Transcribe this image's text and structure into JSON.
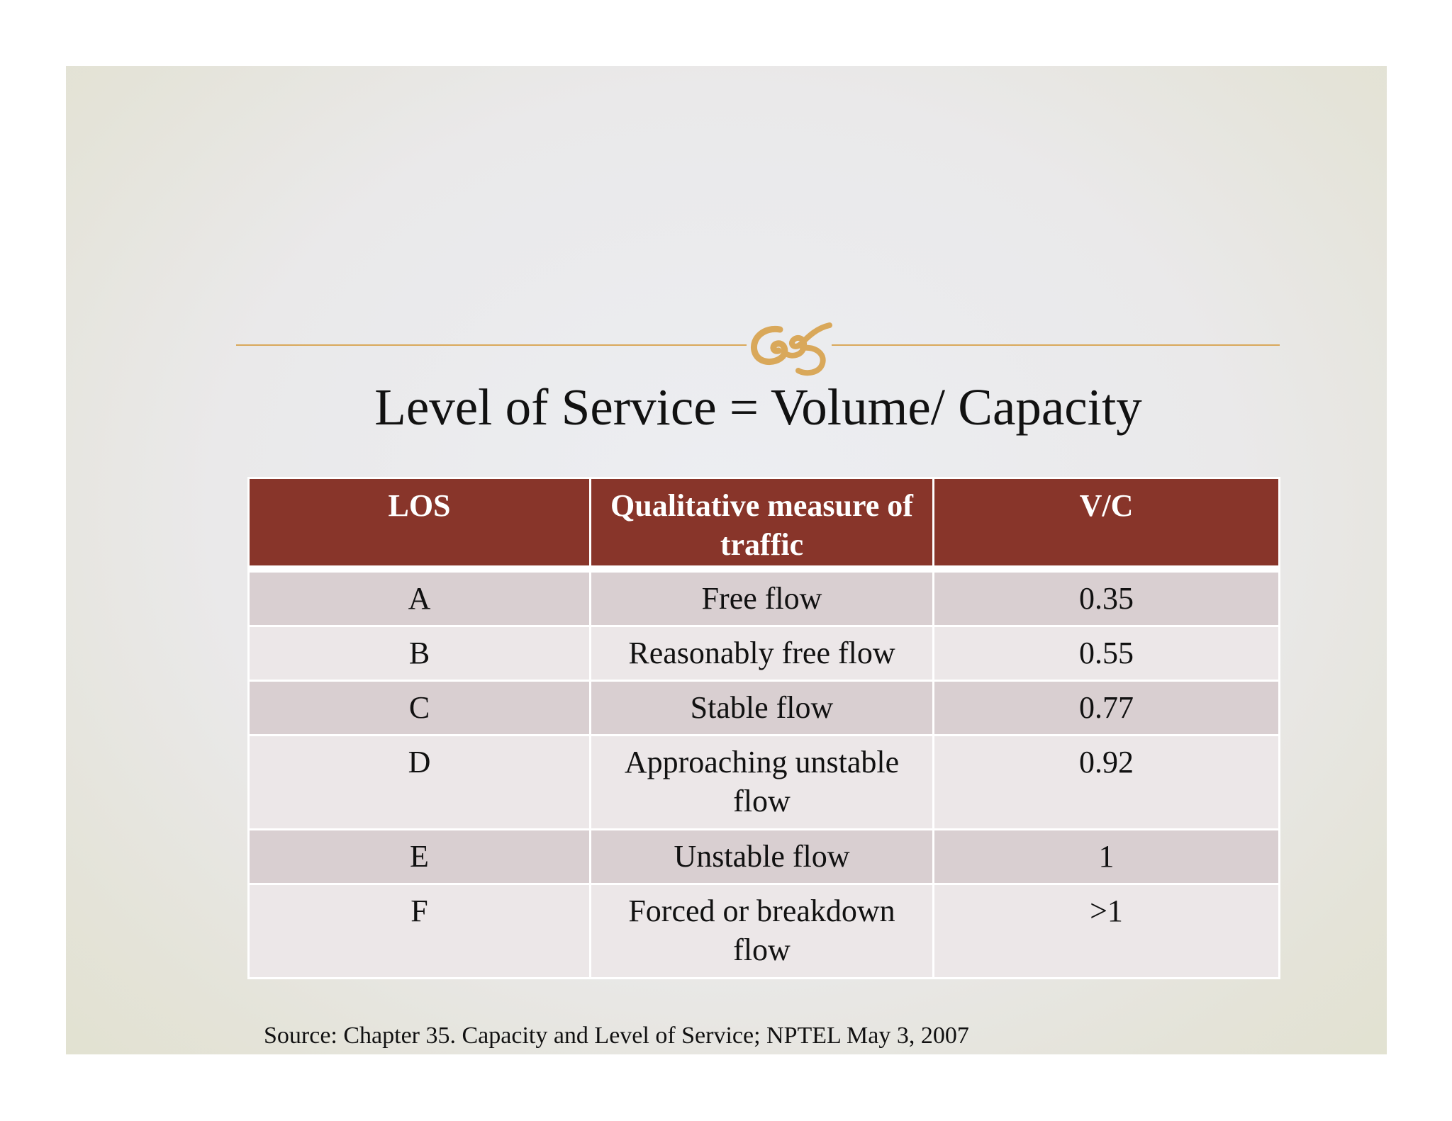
{
  "title": "Level of Service = Volume/ Capacity",
  "ornament_icon": "scroll-flourish-icon",
  "accent_color": "#d9a85a",
  "header_color": "#88352a",
  "table": {
    "headers": [
      "LOS",
      "Qualitative measure of traffic",
      "V/C"
    ],
    "rows": [
      {
        "los": "A",
        "measure": "Free flow",
        "vc": "0.35"
      },
      {
        "los": "B",
        "measure": "Reasonably free flow",
        "vc": "0.55"
      },
      {
        "los": "C",
        "measure": "Stable flow",
        "vc": "0.77"
      },
      {
        "los": "D",
        "measure": "Approaching unstable flow",
        "vc": "0.92"
      },
      {
        "los": "E",
        "measure": "Unstable flow",
        "vc": "1"
      },
      {
        "los": "F",
        "measure": "Forced or breakdown flow",
        "vc": ">1"
      }
    ]
  },
  "source": "Source: Chapter 35. Capacity and Level of Service; NPTEL May 3, 2007"
}
